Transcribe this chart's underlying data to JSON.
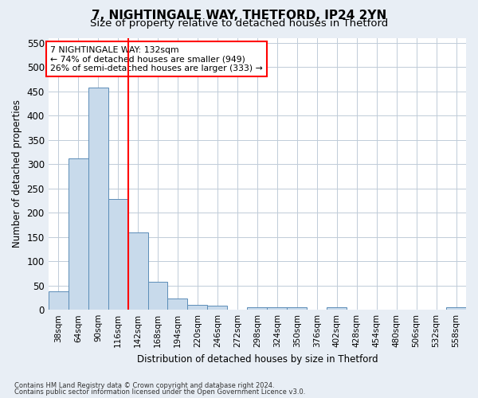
{
  "title": "7, NIGHTINGALE WAY, THETFORD, IP24 2YN",
  "subtitle": "Size of property relative to detached houses in Thetford",
  "xlabel": "Distribution of detached houses by size in Thetford",
  "ylabel": "Number of detached properties",
  "footnote1": "Contains HM Land Registry data © Crown copyright and database right 2024.",
  "footnote2": "Contains public sector information licensed under the Open Government Licence v3.0.",
  "bin_labels": [
    "38sqm",
    "64sqm",
    "90sqm",
    "116sqm",
    "142sqm",
    "168sqm",
    "194sqm",
    "220sqm",
    "246sqm",
    "272sqm",
    "298sqm",
    "324sqm",
    "350sqm",
    "376sqm",
    "402sqm",
    "428sqm",
    "454sqm",
    "480sqm",
    "506sqm",
    "532sqm",
    "558sqm"
  ],
  "bin_values": [
    38,
    311,
    457,
    228,
    160,
    58,
    24,
    10,
    8,
    0,
    5,
    6,
    6,
    0,
    5,
    0,
    0,
    0,
    0,
    0,
    5
  ],
  "bar_color": "#c8daeb",
  "bar_edge_color": "#5b8db8",
  "vline_color": "red",
  "annotation_text": "7 NIGHTINGALE WAY: 132sqm\n← 74% of detached houses are smaller (949)\n26% of semi-detached houses are larger (333) →",
  "annotation_box_color": "white",
  "annotation_box_edge_color": "red",
  "ylim": [
    0,
    560
  ],
  "yticks": [
    0,
    50,
    100,
    150,
    200,
    250,
    300,
    350,
    400,
    450,
    500,
    550
  ],
  "bg_color": "#e8eef5",
  "plot_bg_color": "#ffffff",
  "grid_color": "#c0ccd8",
  "title_fontsize": 11,
  "subtitle_fontsize": 9.5
}
